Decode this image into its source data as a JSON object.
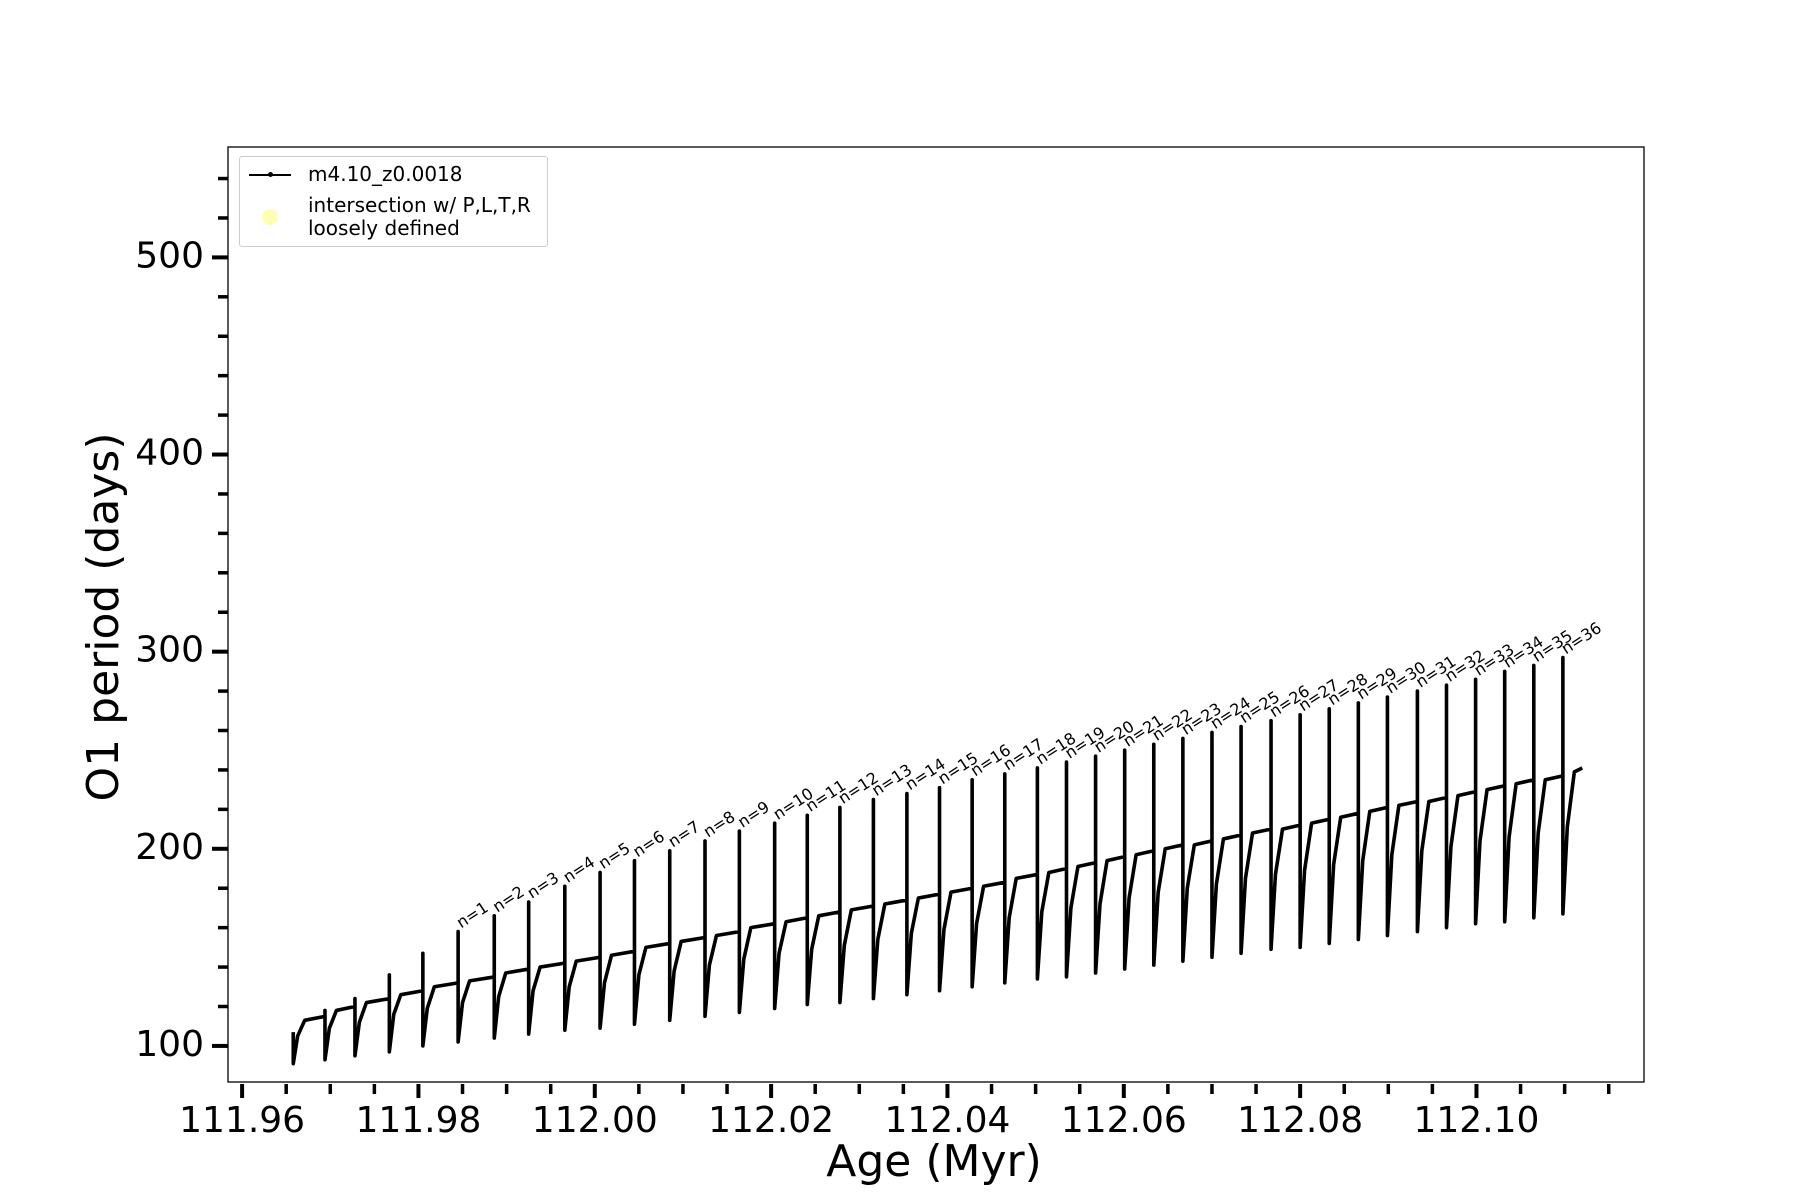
{
  "chart_data": {
    "type": "line",
    "xlabel": "Age (Myr)",
    "ylabel": "O1 period (days)",
    "xlim": [
      111.9584,
      112.119
    ],
    "ylim": [
      81.7,
      556
    ],
    "xticks": [
      111.96,
      111.98,
      {
        "value": 112,
        "label": "112.00"
      },
      112.02,
      112.04,
      112.06,
      112.08,
      {
        "value": 112.1,
        "label": "112.10"
      }
    ],
    "xminorticks": [
      111.965,
      111.97,
      111.975,
      111.985,
      111.99,
      111.995,
      112.005,
      112.01,
      112.015,
      112.025,
      112.03,
      112.035,
      112.045,
      112.05,
      112.055,
      112.065,
      112.07,
      112.075,
      112.085,
      112.09,
      112.095,
      112.105,
      112.11,
      112.115
    ],
    "yticks": [
      100,
      200,
      300,
      400,
      500
    ],
    "yminorticks": [
      120,
      140,
      160,
      180,
      220,
      240,
      260,
      280,
      320,
      340,
      360,
      380,
      420,
      440,
      460,
      480,
      520,
      540
    ],
    "legend": "upper left",
    "series": [
      {
        "name": "m4.10_z0.0018",
        "color": "#000000",
        "x": [
          111.9658,
          111.9658,
          111.9663,
          111.9671,
          111.9694,
          111.9694,
          111.9694,
          111.9699,
          111.9707,
          111.9728,
          111.9728,
          111.9728,
          111.9733,
          111.9741,
          111.9767,
          111.9767,
          111.9767,
          111.9772,
          111.978,
          111.9805,
          111.9805,
          111.9805,
          111.981,
          111.9818,
          111.9845,
          111.9845,
          111.9845,
          111.985,
          111.9858,
          111.9886,
          111.9886,
          111.9886,
          111.9891,
          111.9899,
          111.9925,
          111.9925,
          111.9925,
          111.993,
          111.9938,
          111.9966,
          111.9966,
          111.9966,
          111.9971,
          111.9979,
          112.0006,
          112.0006,
          112.0006,
          112.0011,
          112.0019,
          112.0045,
          112.0045,
          112.0045,
          112.005,
          112.0058,
          112.0085,
          112.0085,
          112.0085,
          112.009,
          112.0098,
          112.0125,
          112.0125,
          112.0125,
          112.013,
          112.0138,
          112.0164,
          112.0164,
          112.0164,
          112.0169,
          112.0177,
          112.0204,
          112.0204,
          112.0204,
          112.0209,
          112.0217,
          112.0241,
          112.0241,
          112.0241,
          112.0246,
          112.0254,
          112.0278,
          112.0278,
          112.0278,
          112.0283,
          112.0291,
          112.0316,
          112.0316,
          112.0316,
          112.0321,
          112.0329,
          112.0354,
          112.0354,
          112.0354,
          112.0359,
          112.0367,
          112.0391,
          112.0391,
          112.0391,
          112.0396,
          112.0404,
          112.0428,
          112.0428,
          112.0428,
          112.0433,
          112.0441,
          112.0465,
          112.0465,
          112.0465,
          112.047,
          112.0478,
          112.0502,
          112.0502,
          112.0502,
          112.0507,
          112.0515,
          112.0535,
          112.0535,
          112.0535,
          112.054,
          112.0548,
          112.0568,
          112.0568,
          112.0568,
          112.0573,
          112.0581,
          112.0601,
          112.0601,
          112.0601,
          112.0606,
          112.0614,
          112.0634,
          112.0634,
          112.0634,
          112.0639,
          112.0647,
          112.0667,
          112.0667,
          112.0667,
          112.0672,
          112.068,
          112.07,
          112.07,
          112.07,
          112.0705,
          112.0713,
          112.0733,
          112.0733,
          112.0733,
          112.0738,
          112.0746,
          112.0767,
          112.0767,
          112.0767,
          112.0772,
          112.078,
          112.08,
          112.08,
          112.08,
          112.0805,
          112.0813,
          112.0833,
          112.0833,
          112.0833,
          112.0838,
          112.0846,
          112.0866,
          112.0866,
          112.0866,
          112.0871,
          112.0879,
          112.0899,
          112.0899,
          112.0899,
          112.0904,
          112.0912,
          112.0933,
          112.0933,
          112.0933,
          112.0938,
          112.0946,
          112.0966,
          112.0966,
          112.0966,
          112.0971,
          112.0979,
          112.0999,
          112.0999,
          112.0999,
          112.1004,
          112.1012,
          112.1032,
          112.1032,
          112.1032,
          112.1037,
          112.1045,
          112.1065,
          112.1065,
          112.1065,
          112.107,
          112.1078,
          112.1098,
          112.1098,
          112.1098,
          112.1103,
          112.1111,
          112.112
        ],
        "values": [
          107,
          91,
          105,
          113,
          115,
          118,
          93,
          109,
          118,
          120,
          124,
          95,
          112,
          122,
          124,
          136,
          97,
          116,
          126,
          128,
          147,
          100,
          119,
          130,
          132,
          158,
          102,
          122,
          133,
          135,
          166,
          104,
          125,
          137,
          139,
          173,
          106,
          128,
          140,
          142,
          181,
          108,
          130,
          143,
          145,
          188,
          109,
          132,
          146,
          148,
          194,
          111,
          136,
          150,
          152,
          199,
          113,
          138,
          153,
          155,
          204,
          115,
          141,
          156,
          158,
          209,
          117,
          144,
          160,
          162,
          213,
          119,
          147,
          163,
          165,
          217,
          121,
          149,
          166,
          168,
          221,
          122,
          151,
          169,
          171,
          225,
          124,
          154,
          172,
          174,
          228,
          126,
          157,
          175,
          177,
          231,
          128,
          159,
          178,
          180,
          235,
          130,
          162,
          181,
          183,
          238,
          132,
          165,
          185,
          187,
          241,
          134,
          168,
          188,
          190,
          244,
          135,
          170,
          191,
          193,
          247,
          137,
          172,
          194,
          196,
          250,
          139,
          175,
          197,
          199,
          253,
          141,
          178,
          200,
          202,
          256,
          143,
          180,
          202,
          204,
          259,
          145,
          182,
          205,
          207,
          262,
          147,
          185,
          208,
          210,
          265,
          149,
          187,
          210,
          212,
          268,
          150,
          189,
          213,
          215,
          271,
          152,
          192,
          216,
          218,
          274,
          154,
          194,
          219,
          221,
          277,
          156,
          197,
          222,
          224,
          280,
          158,
          199,
          224,
          226,
          283,
          160,
          201,
          227,
          229,
          286,
          162,
          204,
          230,
          232,
          290,
          163,
          206,
          233,
          235,
          293,
          165,
          208,
          235,
          237,
          297,
          167,
          211,
          239,
          241
        ]
      },
      {
        "name": "intersection w/ P,L,T,R\nloosely defined",
        "color": "#ffffb3",
        "marker": "circle",
        "x": [],
        "values": []
      }
    ],
    "annotations": [
      {
        "text": "n=1",
        "x": 111.9845,
        "y": 158
      },
      {
        "text": "n=2",
        "x": 111.9886,
        "y": 166
      },
      {
        "text": "n=3",
        "x": 111.9925,
        "y": 173
      },
      {
        "text": "n=4",
        "x": 111.9966,
        "y": 181
      },
      {
        "text": "n=5",
        "x": 112.0006,
        "y": 188
      },
      {
        "text": "n=6",
        "x": 112.0045,
        "y": 194
      },
      {
        "text": "n=7",
        "x": 112.0085,
        "y": 199
      },
      {
        "text": "n=8",
        "x": 112.0125,
        "y": 204
      },
      {
        "text": "n=9",
        "x": 112.0164,
        "y": 209
      },
      {
        "text": "n=10",
        "x": 112.0204,
        "y": 213
      },
      {
        "text": "n=11",
        "x": 112.0241,
        "y": 217
      },
      {
        "text": "n=12",
        "x": 112.0278,
        "y": 221
      },
      {
        "text": "n=13",
        "x": 112.0316,
        "y": 225
      },
      {
        "text": "n=14",
        "x": 112.0354,
        "y": 228
      },
      {
        "text": "n=15",
        "x": 112.0391,
        "y": 231
      },
      {
        "text": "n=16",
        "x": 112.0428,
        "y": 235
      },
      {
        "text": "n=17",
        "x": 112.0465,
        "y": 238
      },
      {
        "text": "n=18",
        "x": 112.0502,
        "y": 241
      },
      {
        "text": "n=19",
        "x": 112.0535,
        "y": 244
      },
      {
        "text": "n=20",
        "x": 112.0568,
        "y": 247
      },
      {
        "text": "n=21",
        "x": 112.0601,
        "y": 250
      },
      {
        "text": "n=22",
        "x": 112.0634,
        "y": 253
      },
      {
        "text": "n=23",
        "x": 112.0667,
        "y": 256
      },
      {
        "text": "n=24",
        "x": 112.07,
        "y": 259
      },
      {
        "text": "n=25",
        "x": 112.0733,
        "y": 262
      },
      {
        "text": "n=26",
        "x": 112.0767,
        "y": 265
      },
      {
        "text": "n=27",
        "x": 112.08,
        "y": 268
      },
      {
        "text": "n=28",
        "x": 112.0833,
        "y": 271
      },
      {
        "text": "n=29",
        "x": 112.0866,
        "y": 274
      },
      {
        "text": "n=30",
        "x": 112.0899,
        "y": 277
      },
      {
        "text": "n=31",
        "x": 112.0933,
        "y": 280
      },
      {
        "text": "n=32",
        "x": 112.0966,
        "y": 283
      },
      {
        "text": "n=33",
        "x": 112.0999,
        "y": 286
      },
      {
        "text": "n=34",
        "x": 112.1032,
        "y": 290
      },
      {
        "text": "n=35",
        "x": 112.1065,
        "y": 293
      },
      {
        "text": "n=36",
        "x": 112.1098,
        "y": 297
      }
    ]
  }
}
